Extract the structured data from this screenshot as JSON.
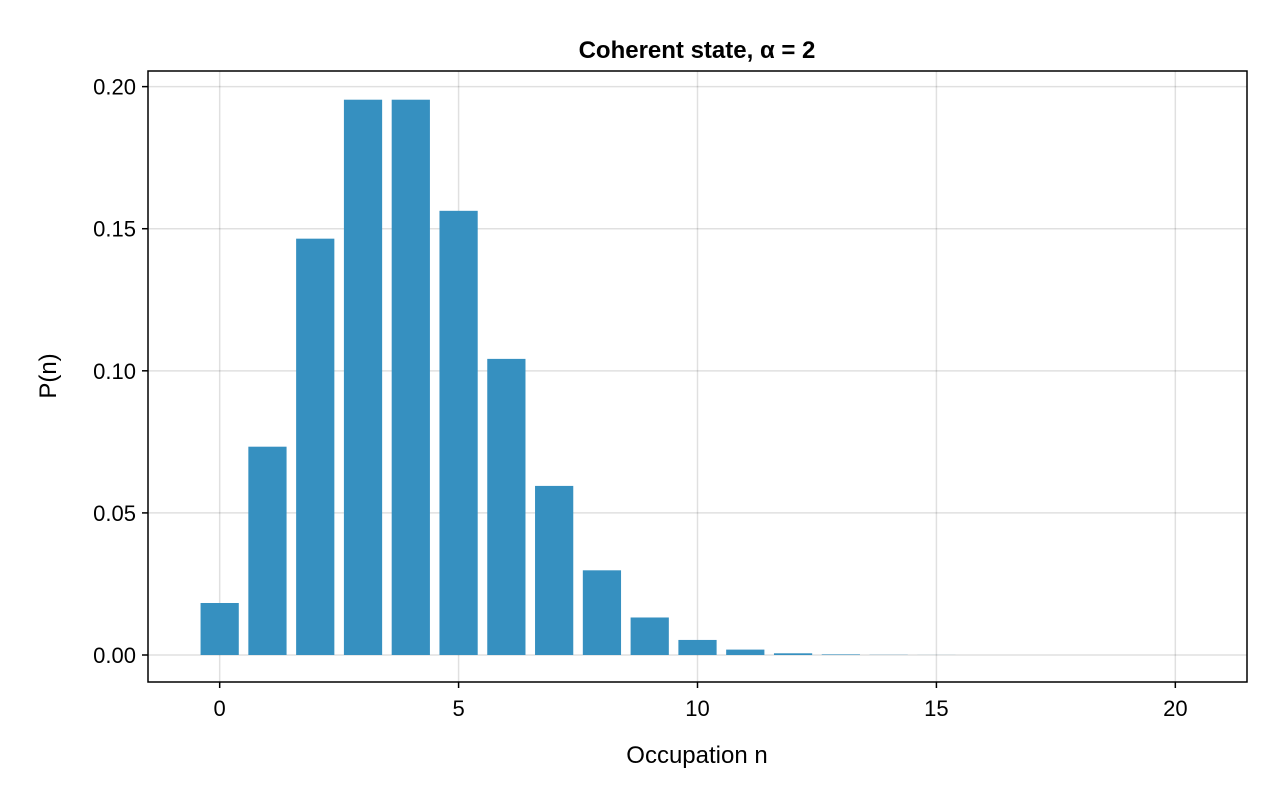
{
  "chart_data": {
    "type": "bar",
    "title": "Coherent state, α = 2",
    "xlabel": "Occupation n",
    "ylabel": "P(n)",
    "x": [
      0,
      1,
      2,
      3,
      4,
      5,
      6,
      7,
      8,
      9,
      10,
      11,
      12,
      13,
      14,
      15,
      16,
      17,
      18,
      19,
      20
    ],
    "values": [
      0.0183,
      0.0733,
      0.1465,
      0.1954,
      0.1954,
      0.1563,
      0.1042,
      0.0595,
      0.0298,
      0.0132,
      0.0053,
      0.0019,
      0.0006,
      0.0002,
      6e-05,
      2e-05,
      0.0,
      0.0,
      0.0,
      0.0,
      0.0
    ],
    "xlim": [
      -1.5,
      21.5
    ],
    "ylim": [
      -0.0095,
      0.2055
    ],
    "xticks": [
      0,
      5,
      10,
      15,
      20
    ],
    "xtick_labels": [
      "0",
      "5",
      "10",
      "15",
      "20"
    ],
    "yticks": [
      0.0,
      0.05,
      0.1,
      0.15,
      0.2
    ],
    "ytick_labels": [
      "0.00",
      "0.05",
      "0.10",
      "0.15",
      "0.20"
    ],
    "grid": true,
    "bar_color": "#3690c0"
  }
}
